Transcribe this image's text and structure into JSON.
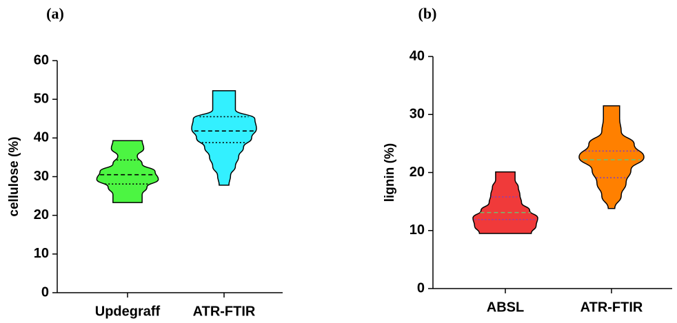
{
  "chart_data": [
    {
      "type": "violin",
      "panel_label": "(a)",
      "ylabel": "cellulose (%)",
      "categories": [
        "Updegraff",
        "ATR-FTIR"
      ],
      "ylim": [
        0,
        60
      ],
      "yticks": [
        0,
        10,
        20,
        30,
        40,
        50,
        60
      ],
      "quartile_color": "#000000",
      "median_color": "#000000",
      "violins": [
        {
          "color": "#4cf542",
          "min": 23.3,
          "q1": 28.1,
          "median": 30.5,
          "q3": 34.3,
          "max": 39.3,
          "density": [
            0.45,
            0.45,
            0.6,
            0.95,
            0.85,
            0.45,
            0.3,
            0.5,
            0.45
          ]
        },
        {
          "color": "#33f0ff",
          "min": 27.8,
          "q1": 38.8,
          "median": 41.8,
          "q3": 45.5,
          "max": 52.2,
          "density": [
            0.15,
            0.2,
            0.35,
            0.45,
            0.6,
            0.85,
            1.0,
            0.95,
            0.35,
            0.35,
            0.35
          ]
        }
      ]
    },
    {
      "type": "violin",
      "panel_label": "(b)",
      "ylabel": "lignin (%)",
      "categories": [
        "ABSL",
        "ATR-FTIR"
      ],
      "ylim": [
        0,
        40
      ],
      "yticks": [
        0,
        10,
        20,
        30,
        40
      ],
      "quartile_color": "#8040c0",
      "median_color": "#70c070",
      "violins": [
        {
          "color": "#f03a3a",
          "min": 9.5,
          "q1": 11.9,
          "median": 13.1,
          "q3": 15.8,
          "max": 20.1,
          "density": [
            0.8,
            0.95,
            1.0,
            0.75,
            0.5,
            0.45,
            0.4,
            0.3,
            0.3
          ]
        },
        {
          "color": "#ff8000",
          "min": 13.8,
          "q1": 19.1,
          "median": 22.2,
          "q3": 23.7,
          "max": 31.5,
          "density": [
            0.1,
            0.3,
            0.45,
            0.6,
            1.0,
            0.7,
            0.3,
            0.25,
            0.25
          ]
        }
      ]
    }
  ]
}
